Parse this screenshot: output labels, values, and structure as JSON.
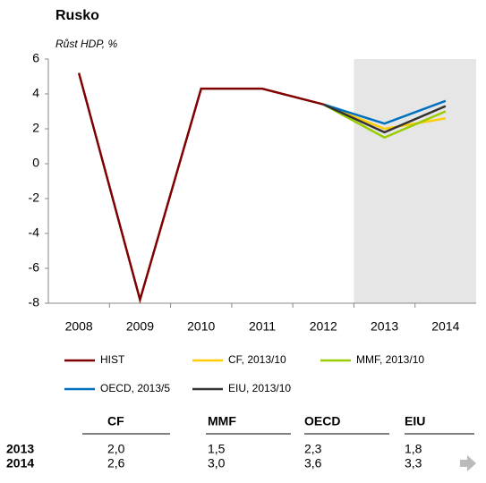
{
  "chart_data": {
    "type": "line",
    "title": "Rusko",
    "subtitle": "Růst HDP, %",
    "categories": [
      "2008",
      "2009",
      "2010",
      "2011",
      "2012",
      "2013",
      "2014"
    ],
    "series": [
      {
        "name": "HIST",
        "color": "#7f0000",
        "values": [
          5.2,
          -7.8,
          4.3,
          4.3,
          3.4,
          null,
          null
        ]
      },
      {
        "name": "CF, 2013/10",
        "color": "#ffcc00",
        "values": [
          null,
          null,
          null,
          null,
          3.4,
          2.0,
          2.6
        ]
      },
      {
        "name": "MMF, 2013/10",
        "color": "#99cc00",
        "values": [
          null,
          null,
          null,
          null,
          3.4,
          1.5,
          3.0
        ]
      },
      {
        "name": "OECD, 2013/5",
        "color": "#0070c0",
        "values": [
          null,
          null,
          null,
          null,
          3.4,
          2.3,
          3.6
        ]
      },
      {
        "name": "EIU, 2013/10",
        "color": "#333333",
        "values": [
          null,
          null,
          null,
          null,
          3.4,
          1.8,
          3.3
        ]
      }
    ],
    "ylim": [
      -8,
      6
    ],
    "yticks": [
      -8,
      -6,
      -4,
      -2,
      0,
      2,
      4,
      6
    ]
  },
  "table": {
    "header": [
      "CF",
      "MMF",
      "OECD",
      "EIU"
    ],
    "rows": [
      [
        "2013",
        "2,0",
        "1,5",
        "2,3",
        "1,8"
      ],
      [
        "2014",
        "2,6",
        "3,0",
        "3,6",
        "3,3"
      ]
    ]
  }
}
